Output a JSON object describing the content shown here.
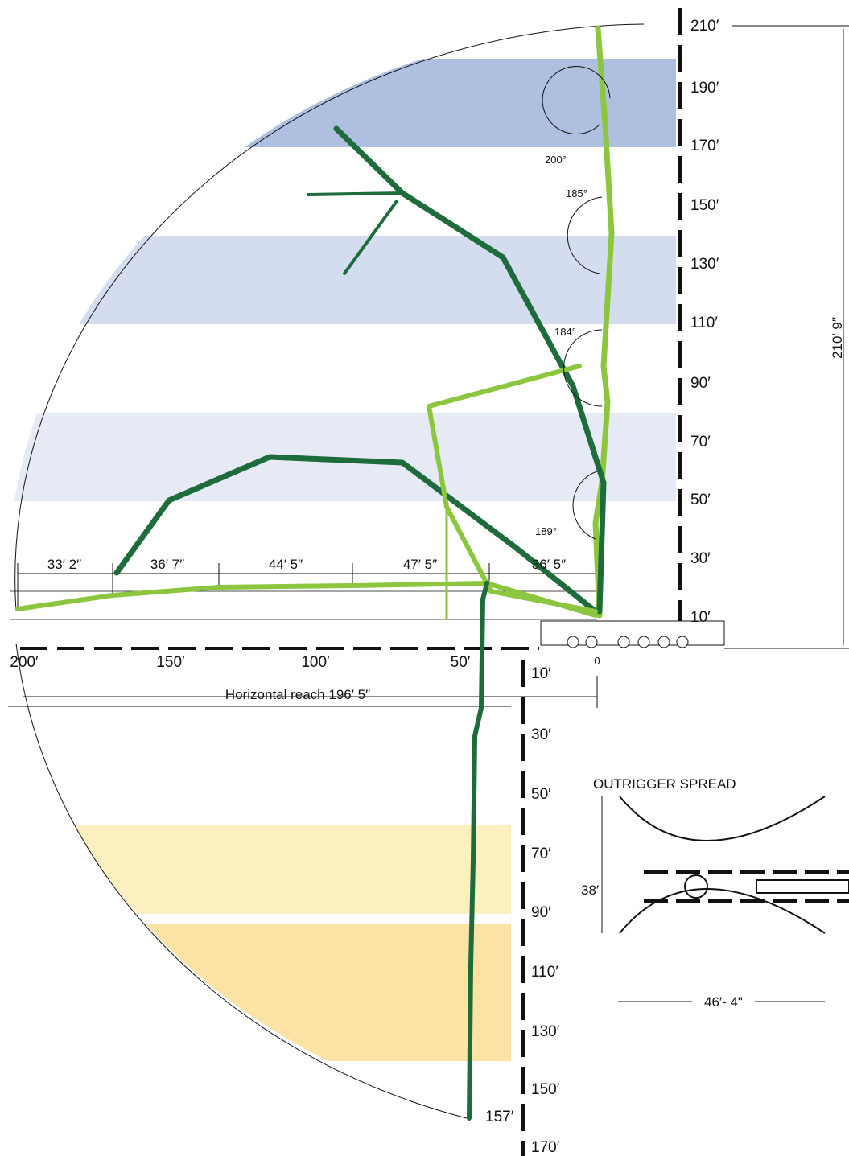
{
  "right_axis": {
    "labels": [
      "210′",
      "190′",
      "170′",
      "150′",
      "130′",
      "110′",
      "90′",
      "70′",
      "50′",
      "30′",
      "10′"
    ]
  },
  "ground_axis": {
    "labels": [
      "200′",
      "150′",
      "100′",
      "50′",
      "0"
    ]
  },
  "depth_axis": {
    "labels": [
      "10′",
      "30′",
      "50′",
      "70′",
      "90′",
      "110′",
      "130′",
      "150′",
      "170′"
    ]
  },
  "depth_mark": "157′",
  "horizontal_reach": "Horizontal reach 196′ 5″",
  "total_height": "210′ 9″",
  "segments": [
    "33′ 2″",
    "36′ 7″",
    "44′ 5″",
    "47′ 5″",
    "36′ 5″"
  ],
  "angles": [
    "200°",
    "185°",
    "184°",
    "189°"
  ],
  "outrigger": {
    "title": "OUTRIGGER SPREAD",
    "width": "38′",
    "length": "46′- 4\""
  }
}
